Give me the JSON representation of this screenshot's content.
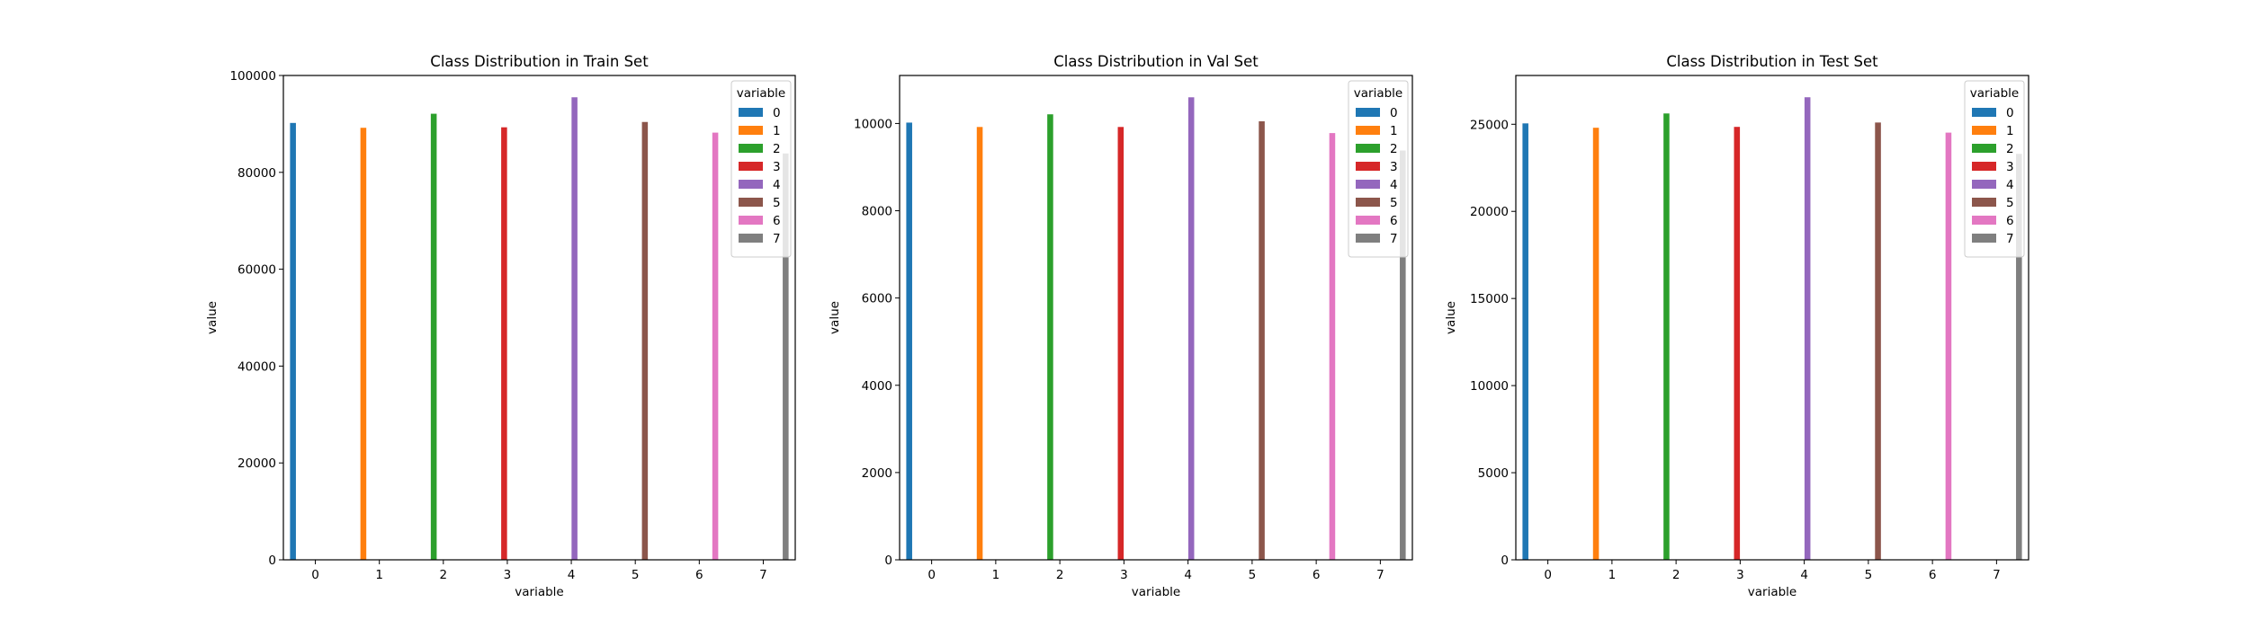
{
  "colors": [
    "#1f77b4",
    "#ff7f0e",
    "#2ca02c",
    "#d62728",
    "#9467bd",
    "#8c564b",
    "#e377c2",
    "#7f7f7f"
  ],
  "chart_data": [
    {
      "type": "bar",
      "title": "Class Distribution in Train Set",
      "xlabel": "variable",
      "ylabel": "value",
      "categories": [
        "0",
        "1",
        "2",
        "3",
        "4",
        "5",
        "6",
        "7"
      ],
      "values": [
        90200,
        89200,
        92100,
        89300,
        95500,
        90400,
        88200,
        83900
      ],
      "ylim": [
        0,
        100000
      ],
      "yticks": [
        0,
        20000,
        40000,
        60000,
        80000,
        100000
      ],
      "grid": false,
      "legend": {
        "title": "variable",
        "labels": [
          "0",
          "1",
          "2",
          "3",
          "4",
          "5",
          "6",
          "7"
        ],
        "placement": "top-right"
      }
    },
    {
      "type": "bar",
      "title": "Class Distribution in Val Set",
      "xlabel": "variable",
      "ylabel": "value",
      "categories": [
        "0",
        "1",
        "2",
        "3",
        "4",
        "5",
        "6",
        "7"
      ],
      "values": [
        10020,
        9920,
        10210,
        9920,
        10600,
        10050,
        9780,
        9380
      ],
      "ylim": [
        0,
        11100
      ],
      "yticks": [
        0,
        2000,
        4000,
        6000,
        8000,
        10000
      ],
      "grid": false,
      "legend": {
        "title": "variable",
        "labels": [
          "0",
          "1",
          "2",
          "3",
          "4",
          "5",
          "6",
          "7"
        ],
        "placement": "top-right"
      }
    },
    {
      "type": "bar",
      "title": "Class Distribution in Test Set",
      "xlabel": "variable",
      "ylabel": "value",
      "categories": [
        "0",
        "1",
        "2",
        "3",
        "4",
        "5",
        "6",
        "7"
      ],
      "values": [
        25050,
        24800,
        25620,
        24850,
        26550,
        25100,
        24520,
        23300
      ],
      "ylim": [
        0,
        27800
      ],
      "yticks": [
        0,
        5000,
        10000,
        15000,
        20000,
        25000
      ],
      "grid": false,
      "legend": {
        "title": "variable",
        "labels": [
          "0",
          "1",
          "2",
          "3",
          "4",
          "5",
          "6",
          "7"
        ],
        "placement": "top-right"
      }
    }
  ]
}
